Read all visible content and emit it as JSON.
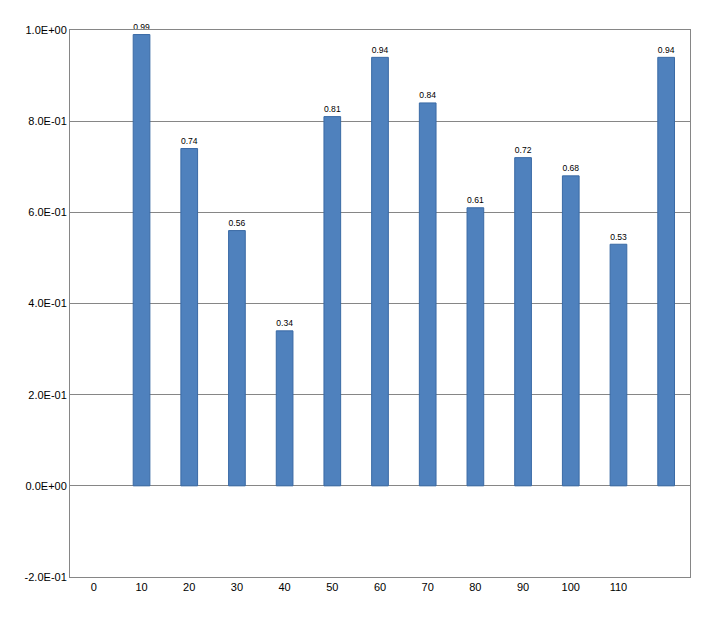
{
  "chart_data": {
    "type": "bar",
    "categories": [
      "0",
      "10",
      "20",
      "30",
      "40",
      "50",
      "60",
      "70",
      "80",
      "90",
      "100",
      "110",
      null
    ],
    "values": [
      null,
      0.99,
      0.74,
      0.56,
      0.34,
      0.81,
      0.94,
      0.84,
      0.61,
      0.72,
      0.68,
      0.53,
      0.94
    ],
    "color": "#4f81bd",
    "ylim": [
      -0.2,
      1.0
    ],
    "yticks": [
      {
        "value": -0.2,
        "label": "-2.0E-01"
      },
      {
        "value": 0,
        "label": "0.0E+00"
      },
      {
        "value": 0.2,
        "label": "2.0E-01"
      },
      {
        "value": 0.4,
        "label": "4.0E-01"
      },
      {
        "value": 0.6,
        "label": "6.0E-01"
      },
      {
        "value": 0.8,
        "label": "8.0E-01"
      },
      {
        "value": 1.0,
        "label": "1.0E+00"
      }
    ],
    "grid": true,
    "data_labels": true
  }
}
